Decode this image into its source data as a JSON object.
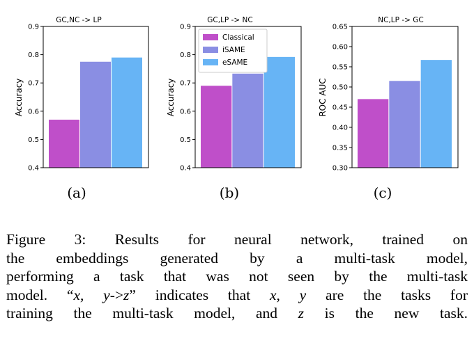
{
  "chart_data": [
    {
      "type": "bar",
      "title": "GC,NC -> LP",
      "ylabel": "Accuracy",
      "ylim": [
        0.4,
        0.9
      ],
      "yticks": [
        "0.4",
        "0.5",
        "0.6",
        "0.7",
        "0.8",
        "0.9"
      ],
      "ytick_values": [
        0.4,
        0.5,
        0.6,
        0.7,
        0.8,
        0.9
      ],
      "series": [
        {
          "name": "Classical",
          "value": 0.57
        },
        {
          "name": "iSAME",
          "value": 0.775
        },
        {
          "name": "eSAME",
          "value": 0.79
        }
      ],
      "sub_caption": "(a)"
    },
    {
      "type": "bar",
      "title": "GC,LP -> NC",
      "ylabel": "Accuracy",
      "ylim": [
        0.4,
        0.9
      ],
      "yticks": [
        "0.4",
        "0.5",
        "0.6",
        "0.7",
        "0.8",
        "0.9"
      ],
      "ytick_values": [
        0.4,
        0.5,
        0.6,
        0.7,
        0.8,
        0.9
      ],
      "series": [
        {
          "name": "Classical",
          "value": 0.69
        },
        {
          "name": "iSAME",
          "value": 0.733
        },
        {
          "name": "eSAME",
          "value": 0.792
        }
      ],
      "legend": {
        "placement": "top-left",
        "entries": [
          "Classical",
          "iSAME",
          "eSAME"
        ]
      },
      "sub_caption": "(b)"
    },
    {
      "type": "bar",
      "title": "NC,LP -> GC",
      "ylabel": "ROC AUC",
      "ylim": [
        0.3,
        0.65
      ],
      "yticks": [
        "0.30",
        "0.35",
        "0.40",
        "0.45",
        "0.50",
        "0.55",
        "0.60",
        "0.65"
      ],
      "ytick_values": [
        0.3,
        0.35,
        0.4,
        0.45,
        0.5,
        0.55,
        0.6,
        0.65
      ],
      "series": [
        {
          "name": "Classical",
          "value": 0.47
        },
        {
          "name": "iSAME",
          "value": 0.515
        },
        {
          "name": "eSAME",
          "value": 0.567
        }
      ],
      "sub_caption": "(c)"
    }
  ],
  "colors": {
    "Classical": "#bf4fc9",
    "iSAME": "#8a8ee3",
    "eSAME": "#67b4f5"
  },
  "caption": {
    "lines": [
      "Figure 3: Results for neural network, trained on",
      "the embeddings generated by a multi-task model,",
      "performing a task that was not seen by the multi-task"
    ],
    "line4_parts": [
      "model. “",
      "x, y",
      "->",
      "z",
      "” indicates that ",
      "x, y",
      " are the tasks for"
    ],
    "line5_parts": [
      "training the multi-task model, and ",
      "z",
      " is the new task."
    ]
  }
}
